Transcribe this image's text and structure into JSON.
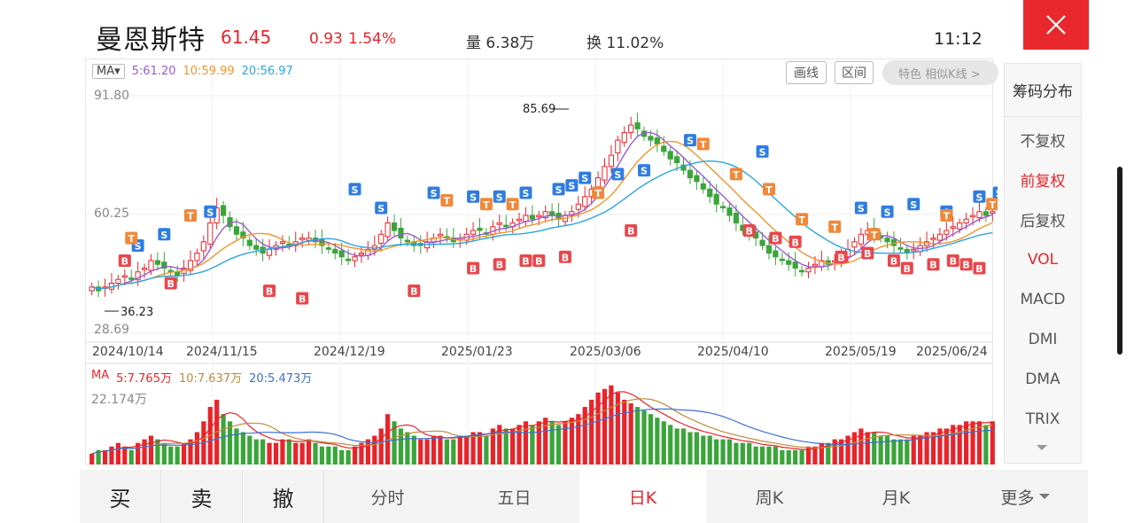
{
  "header": {
    "stock_name": "曼恩斯特",
    "price": "61.45",
    "change": "0.93",
    "change_pct": "1.54%",
    "volume": "量 6.38万",
    "turnover": "换 11.02%",
    "clock": "11:12",
    "close_icon": "close-icon"
  },
  "toolbar": {
    "ma_select": "MA▾",
    "ma5": "5:61.20",
    "ma10": "10:59.99",
    "ma20": "20:56.97",
    "draw_line": "画线",
    "interval": "区间",
    "feature": "特色 相似K线 >"
  },
  "price_axis": {
    "high": "91.80",
    "mid": "60.25",
    "low": "28.69",
    "peak_annotation": "85.69",
    "trough_annotation": "36.23"
  },
  "dates": [
    "2024/10/14",
    "2024/11/15",
    "2024/12/19",
    "2025/01/23",
    "2025/03/06",
    "2025/04/10",
    "2025/05/19",
    "2025/06/24"
  ],
  "volume_panel": {
    "ma_prefix": "MA",
    "ma5": "5:7.765万",
    "ma10": "10:7.637万",
    "ma20": "20:5.473万",
    "max_label": "22.174万"
  },
  "side_panel": {
    "title": "筹码分布",
    "items": [
      {
        "label": "不复权",
        "active": false
      },
      {
        "label": "前复权",
        "active": true
      },
      {
        "label": "后复权",
        "active": false
      },
      {
        "label": "VOL",
        "active": true
      },
      {
        "label": "MACD",
        "active": false
      },
      {
        "label": "DMI",
        "active": false
      },
      {
        "label": "DMA",
        "active": false
      },
      {
        "label": "TRIX",
        "active": false
      }
    ]
  },
  "bottom_bar": {
    "buy": "买",
    "sell": "卖",
    "cancel": "撤",
    "tabs": [
      {
        "label": "分时",
        "active": false
      },
      {
        "label": "五日",
        "active": false
      },
      {
        "label": "日K",
        "active": true
      },
      {
        "label": "周K",
        "active": false
      },
      {
        "label": "月K",
        "active": false
      }
    ],
    "more": "更多"
  },
  "colors": {
    "up": "#e8242b",
    "down": "#3aa53a",
    "ma5": "#9b59d0",
    "ma10": "#f0952a",
    "ma20": "#2aa5e0",
    "buy_marker": "#e8474c",
    "sell_marker": "#2f7de1",
    "t_marker": "#f0883a"
  },
  "chart_data": {
    "type": "candlestick",
    "ylim": [
      28.69,
      91.8
    ],
    "closes": [
      41,
      40,
      41,
      42,
      43,
      44,
      43,
      45,
      46,
      48,
      47,
      46,
      45,
      44,
      46,
      48,
      50,
      53,
      58,
      62,
      60,
      57,
      55,
      54,
      52,
      51,
      50,
      51,
      52,
      53,
      52,
      53,
      54,
      54,
      53,
      52,
      51,
      50,
      49,
      48,
      49,
      50,
      51,
      52,
      55,
      58,
      56,
      54,
      53,
      52,
      52,
      53,
      54,
      55,
      54,
      53,
      54,
      55,
      56,
      56,
      55,
      57,
      58,
      57,
      58,
      59,
      60,
      59,
      60,
      61,
      60,
      59,
      60,
      61,
      63,
      65,
      67,
      70,
      73,
      76,
      80,
      82,
      84,
      83,
      81,
      80,
      79,
      77,
      75,
      74,
      72,
      70,
      69,
      67,
      65,
      63,
      62,
      60,
      58,
      56,
      55,
      54,
      52,
      50,
      49,
      48,
      47,
      46,
      45,
      46,
      47,
      48,
      47,
      48,
      49,
      51,
      53,
      55,
      56,
      55,
      54,
      53,
      52,
      51,
      50,
      51,
      52,
      53,
      54,
      55,
      56,
      57,
      58,
      59,
      60,
      61,
      60,
      61
    ],
    "markers": {
      "buy": [
        [
          5,
          48
        ],
        [
          12,
          42
        ],
        [
          27,
          40
        ],
        [
          32,
          38
        ],
        [
          49,
          40
        ],
        [
          58,
          46
        ],
        [
          62,
          47
        ],
        [
          66,
          48
        ],
        [
          68,
          48
        ],
        [
          72,
          49
        ],
        [
          82,
          56
        ],
        [
          100,
          56
        ],
        [
          104,
          54
        ],
        [
          107,
          53
        ],
        [
          114,
          49
        ],
        [
          118,
          50
        ],
        [
          122,
          48
        ],
        [
          124,
          46
        ],
        [
          128,
          47
        ],
        [
          131,
          48
        ],
        [
          133,
          47
        ],
        [
          135,
          46
        ],
        [
          140,
          47
        ],
        [
          148,
          48
        ],
        [
          155,
          52
        ]
      ],
      "sell": [
        [
          7,
          52
        ],
        [
          11,
          55
        ],
        [
          18,
          61
        ],
        [
          40,
          67
        ],
        [
          44,
          62
        ],
        [
          52,
          66
        ],
        [
          58,
          65
        ],
        [
          62,
          65
        ],
        [
          66,
          66
        ],
        [
          71,
          67
        ],
        [
          73,
          68
        ],
        [
          75,
          70
        ],
        [
          80,
          71
        ],
        [
          84,
          72
        ],
        [
          91,
          80
        ],
        [
          102,
          77
        ],
        [
          117,
          62
        ],
        [
          121,
          61
        ],
        [
          125,
          63
        ],
        [
          130,
          61
        ],
        [
          135,
          65
        ],
        [
          138,
          66
        ],
        [
          142,
          68
        ],
        [
          145,
          70
        ],
        [
          150,
          72
        ]
      ],
      "t": [
        [
          6,
          54
        ],
        [
          15,
          60
        ],
        [
          54,
          64
        ],
        [
          60,
          63
        ],
        [
          64,
          63
        ],
        [
          77,
          66
        ],
        [
          93,
          79
        ],
        [
          98,
          71
        ],
        [
          103,
          67
        ],
        [
          108,
          59
        ],
        [
          113,
          57
        ],
        [
          119,
          55
        ],
        [
          130,
          60
        ],
        [
          137,
          63
        ],
        [
          141,
          64
        ],
        [
          146,
          67
        ]
      ]
    },
    "volumes": [
      3,
      4,
      4,
      5,
      6,
      5,
      4,
      6,
      7,
      8,
      7,
      6,
      5,
      5,
      6,
      7,
      9,
      12,
      16,
      18,
      14,
      12,
      10,
      9,
      8,
      7,
      7,
      6,
      6,
      7,
      7,
      6,
      6,
      7,
      6,
      5,
      5,
      5,
      4,
      4,
      5,
      6,
      7,
      8,
      10,
      14,
      12,
      10,
      9,
      8,
      7,
      7,
      8,
      8,
      7,
      7,
      8,
      8,
      9,
      9,
      8,
      10,
      11,
      10,
      10,
      11,
      12,
      11,
      12,
      13,
      12,
      11,
      12,
      13,
      14,
      16,
      18,
      20,
      21,
      22,
      20,
      18,
      17,
      16,
      15,
      14,
      13,
      12,
      11,
      10,
      10,
      9,
      9,
      8,
      8,
      7,
      7,
      7,
      6,
      6,
      6,
      5,
      5,
      5,
      5,
      4,
      4,
      4,
      4,
      5,
      5,
      6,
      6,
      7,
      7,
      8,
      9,
      10,
      9,
      9,
      8,
      8,
      7,
      7,
      7,
      8,
      8,
      9,
      9,
      10,
      10,
      11,
      11,
      12,
      12,
      12,
      11,
      12
    ],
    "vol_max": 22.174
  }
}
